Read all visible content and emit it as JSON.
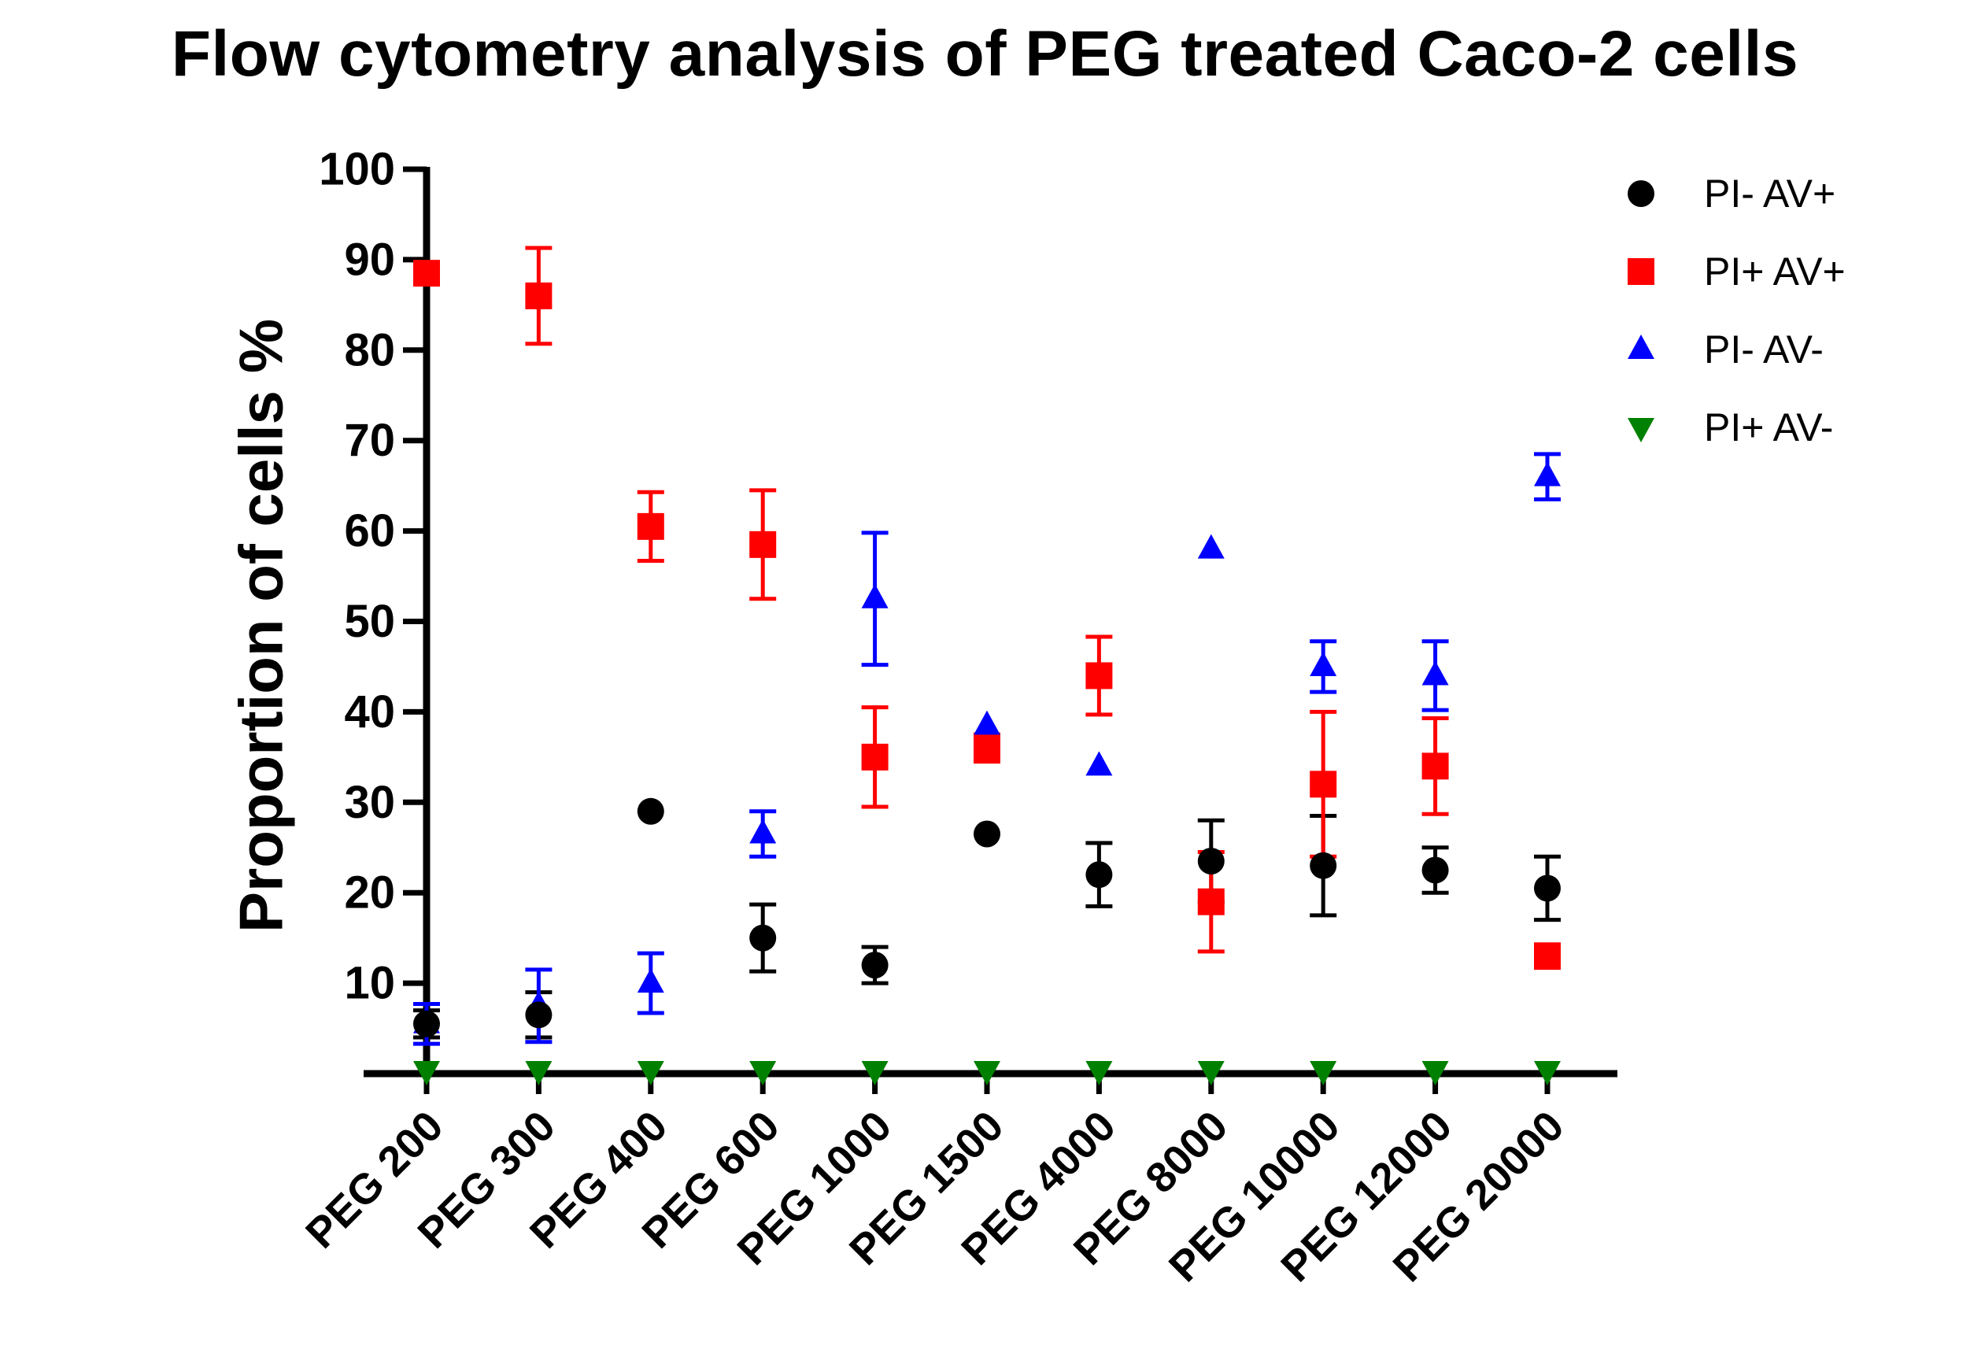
{
  "chart_data": {
    "type": "scatter",
    "title": "Flow cytometry analysis of PEG treated Caco-2 cells",
    "xlabel": "",
    "ylabel": "Proportion of cells %",
    "ylim": [
      0,
      100
    ],
    "yticks": [
      10,
      20,
      30,
      40,
      50,
      60,
      70,
      80,
      90,
      100
    ],
    "legend_position": "top-right",
    "categories": [
      "PEG 200",
      "PEG 300",
      "PEG 400",
      "PEG 600",
      "PEG 1000",
      "PEG 1500",
      "PEG 4000",
      "PEG 8000",
      "PEG 10000",
      "PEG 12000",
      "PEG 20000"
    ],
    "series": [
      {
        "name": "PI- AV+",
        "color": "#000000",
        "marker": "circle",
        "values": [
          5.5,
          6.5,
          29,
          15,
          12,
          26.5,
          22,
          23.5,
          23,
          22.5,
          20.5
        ],
        "errors": [
          1.5,
          2.5,
          0,
          3.7,
          2,
          0,
          3.5,
          4.5,
          5.5,
          2.5,
          3.5
        ]
      },
      {
        "name": "PI+ AV+",
        "color": "#ff0000",
        "marker": "square",
        "values": [
          88.5,
          86,
          60.5,
          58.5,
          35,
          36,
          44,
          19,
          32,
          34,
          13
        ],
        "errors": [
          0,
          5.3,
          3.8,
          6,
          5.5,
          1.5,
          4.3,
          5.5,
          8,
          5.3,
          1.3
        ]
      },
      {
        "name": "PI- AV-",
        "color": "#0000ff",
        "marker": "triangle-up",
        "values": [
          5.5,
          7.5,
          10,
          26.5,
          52.5,
          38.5,
          34,
          58,
          45,
          44,
          66
        ],
        "errors": [
          2.2,
          4,
          3.3,
          2.5,
          7.3,
          0,
          0,
          0,
          2.8,
          3.8,
          2.5
        ]
      },
      {
        "name": "PI+ AV-",
        "color": "#008000",
        "marker": "triangle-down",
        "values": [
          1,
          1,
          1,
          1,
          1,
          1,
          1,
          1,
          1,
          1,
          1
        ],
        "errors": [
          0,
          0,
          0,
          0,
          0,
          0,
          0,
          0,
          0,
          0,
          0
        ]
      }
    ]
  }
}
